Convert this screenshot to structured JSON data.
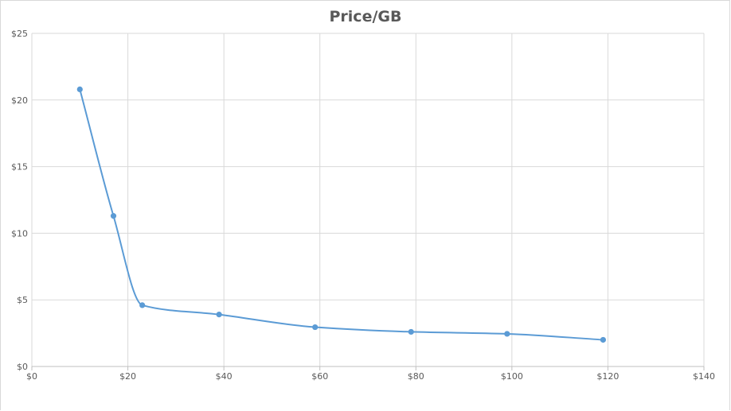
{
  "chart_data": {
    "type": "scatter",
    "title": "Price/GB",
    "xlabel": "",
    "ylabel": "",
    "xlim": [
      0,
      140
    ],
    "ylim": [
      0,
      25
    ],
    "x_ticks": [
      0,
      20,
      40,
      60,
      80,
      100,
      120,
      140
    ],
    "y_ticks": [
      0,
      5,
      10,
      15,
      20,
      25
    ],
    "x_tick_labels": [
      "$0",
      "$20",
      "$40",
      "$60",
      "$80",
      "$100",
      "$120",
      "$140"
    ],
    "y_tick_labels": [
      "$0",
      "$5",
      "$10",
      "$15",
      "$20",
      "$25"
    ],
    "grid": true,
    "smooth_line": true,
    "series": [
      {
        "color": "#5b9bd5",
        "x": [
          10,
          17,
          23,
          39,
          59,
          79,
          99,
          119
        ],
        "y": [
          20.8,
          11.3,
          4.6,
          3.9,
          2.95,
          2.6,
          2.45,
          2.0
        ]
      }
    ]
  }
}
